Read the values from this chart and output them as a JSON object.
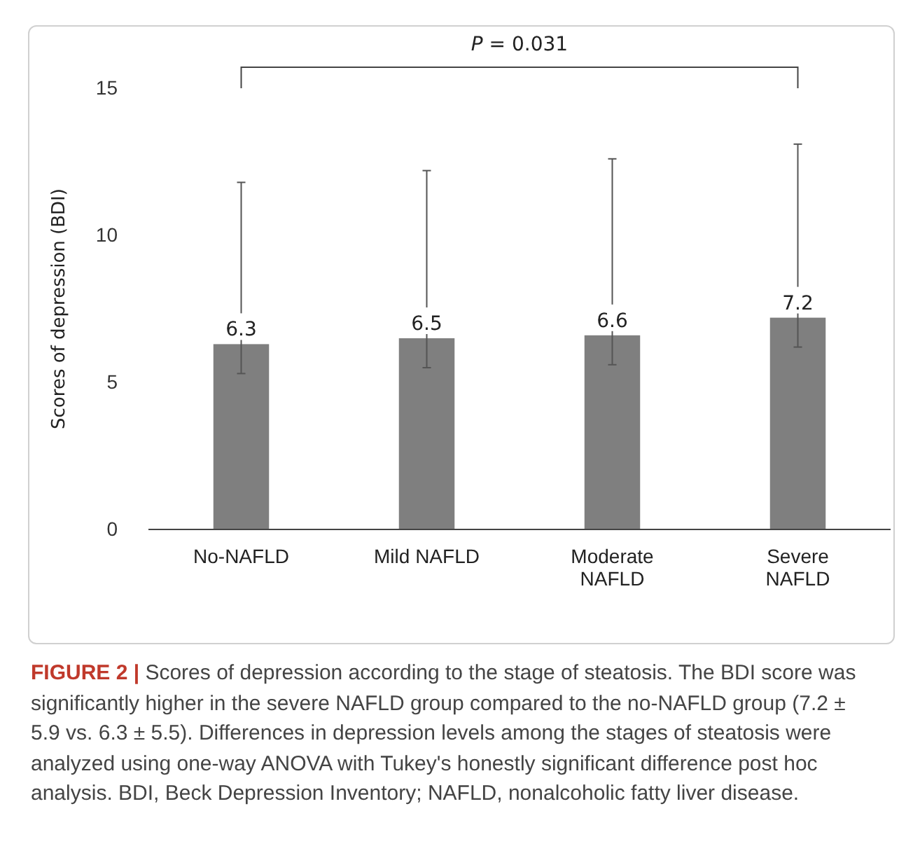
{
  "chart_data": {
    "type": "bar",
    "ylabel": "Scores of depression (BDI)",
    "categories": [
      "No-NAFLD",
      "Mild NAFLD",
      "Moderate NAFLD",
      "Severe NAFLD"
    ],
    "values": [
      6.3,
      6.5,
      6.6,
      7.2
    ],
    "color": "#7f7f7f",
    "errors": [
      [
        5.3,
        11.8
      ],
      [
        5.5,
        12.2
      ],
      [
        5.6,
        12.6
      ],
      [
        6.2,
        13.1
      ]
    ],
    "data_labels": true,
    "ylim": [
      0,
      15
    ],
    "yticks": [
      0,
      5,
      10,
      15
    ],
    "grid": false,
    "annotations": [
      "P = 0.031",
      "FIGURE 2 |",
      "Scores of depression according to the stage of steatosis. The BDI score was significantly higher in the severe NAFLD group compared to the no-NAFLD group (7.2 ± 5.9 vs. 6.3 ± 5.5). Differences in depression levels among the stages of steatosis were analyzed using one-way ANOVA with Tukey's honestly significant difference post hoc analysis. BDI, Beck Depression Inventory; NAFLD, nonalcoholic fatty liver disease."
    ]
  }
}
